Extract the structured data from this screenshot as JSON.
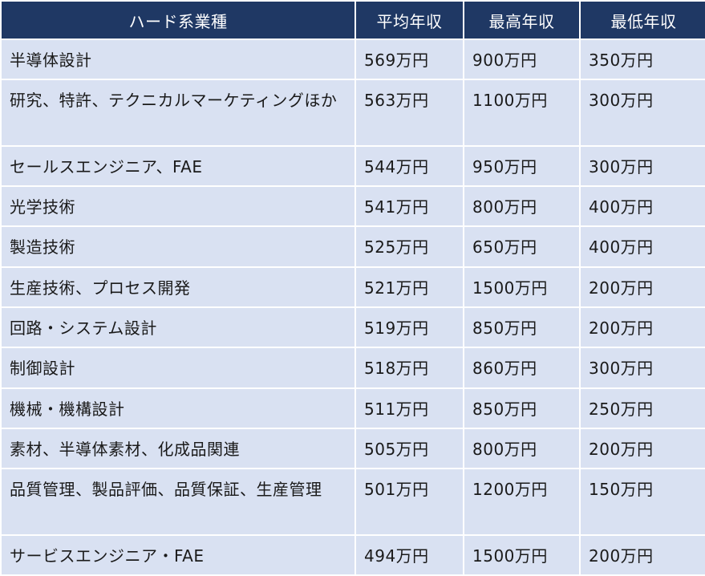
{
  "header": {
    "category": "ハード系業種",
    "avg": "平均年収",
    "max": "最高年収",
    "min": "最低年収"
  },
  "rows": [
    {
      "name": "半導体設計",
      "avg": "569万円",
      "max": "900万円",
      "min": "350万円"
    },
    {
      "name": "研究、特許、テクニカルマーケティングほか",
      "avg": "563万円",
      "max": "1100万円",
      "min": "300万円"
    },
    {
      "name": "セールスエンジニア、FAE",
      "avg": "544万円",
      "max": "950万円",
      "min": "300万円"
    },
    {
      "name": "光学技術",
      "avg": "541万円",
      "max": "800万円",
      "min": "400万円"
    },
    {
      "name": "製造技術",
      "avg": "525万円",
      "max": "650万円",
      "min": "400万円"
    },
    {
      "name": "生産技術、プロセス開発",
      "avg": "521万円",
      "max": "1500万円",
      "min": "200万円"
    },
    {
      "name": "回路・システム設計",
      "avg": "519万円",
      "max": "850万円",
      "min": "200万円"
    },
    {
      "name": "制御設計",
      "avg": "518万円",
      "max": "860万円",
      "min": "300万円"
    },
    {
      "name": "機械・機構設計",
      "avg": "511万円",
      "max": "850万円",
      "min": "250万円"
    },
    {
      "name": "素材、半導体素材、化成品関連",
      "avg": "505万円",
      "max": "800万円",
      "min": "200万円"
    },
    {
      "name": "品質管理、製品評価、品質保証、生産管理",
      "avg": "501万円",
      "max": "1200万円",
      "min": "150万円"
    },
    {
      "name": "サービスエンジニア・FAE",
      "avg": "494万円",
      "max": "1500万円",
      "min": "200万円"
    }
  ]
}
